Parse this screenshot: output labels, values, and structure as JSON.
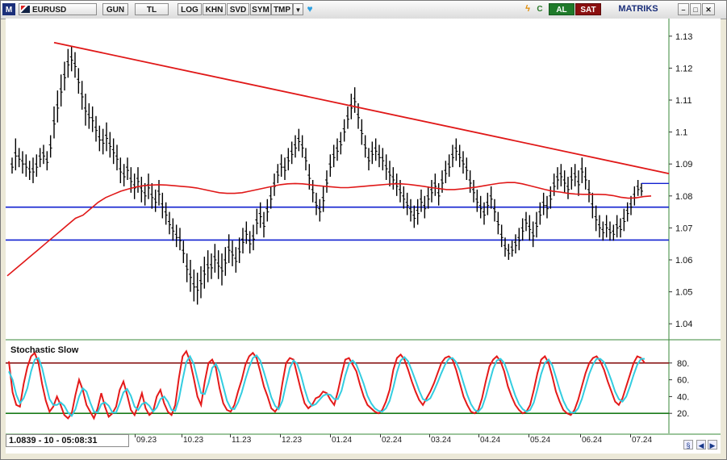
{
  "toolbar": {
    "logo": "M",
    "symbol": "EURUSD",
    "buttons": [
      "GUN",
      "TL",
      "LOG",
      "KHN",
      "SVD",
      "SYM",
      "TMP"
    ],
    "buy_label": "AL",
    "sell_label": "SAT",
    "brand": "MATRIKS",
    "colors": {
      "buy": "#1f7a2a",
      "sell": "#8b1010",
      "brand": "#1b2f7a"
    }
  },
  "status": {
    "readout": "1.0839 - 10 - 05:08:31"
  },
  "x_axis": [
    "09.23",
    "10.23",
    "11.23",
    "12.23",
    "01.24",
    "02.24",
    "03.24",
    "04.24",
    "05.24",
    "06.24",
    "07.24"
  ],
  "y_axis": [
    "1.13",
    "1.12",
    "1.11",
    "1.1",
    "1.09",
    "1.08",
    "1.07",
    "1.06",
    "1.05",
    "1.04"
  ],
  "stoch": {
    "title": "Stochastic Slow",
    "ticks": [
      "80.",
      "60.",
      "40.",
      "20."
    ],
    "upper_level": 80,
    "lower_level": 20,
    "colors": {
      "k": "#e41a1a",
      "d": "#33cde0",
      "upper": "#8b1a1a",
      "lower": "#1a7a1a"
    }
  },
  "chart_data": {
    "type": "bar",
    "ylim": [
      1.035,
      1.135
    ],
    "candles": [
      [
        1.092,
        1.087
      ],
      [
        1.098,
        1.088
      ],
      [
        1.095,
        1.089
      ],
      [
        1.094,
        1.087
      ],
      [
        1.093,
        1.086
      ],
      [
        1.091,
        1.085
      ],
      [
        1.092,
        1.084
      ],
      [
        1.093,
        1.086
      ],
      [
        1.095,
        1.089
      ],
      [
        1.096,
        1.09
      ],
      [
        1.094,
        1.088
      ],
      [
        1.099,
        1.092
      ],
      [
        1.108,
        1.098
      ],
      [
        1.113,
        1.103
      ],
      [
        1.118,
        1.108
      ],
      [
        1.122,
        1.113
      ],
      [
        1.126,
        1.117
      ],
      [
        1.127,
        1.119
      ],
      [
        1.125,
        1.117
      ],
      [
        1.12,
        1.112
      ],
      [
        1.116,
        1.107
      ],
      [
        1.112,
        1.102
      ],
      [
        1.109,
        1.101
      ],
      [
        1.108,
        1.1
      ],
      [
        1.105,
        1.097
      ],
      [
        1.102,
        1.094
      ],
      [
        1.101,
        1.093
      ],
      [
        1.103,
        1.094
      ],
      [
        1.1,
        1.092
      ],
      [
        1.098,
        1.09
      ],
      [
        1.096,
        1.088
      ],
      [
        1.092,
        1.084
      ],
      [
        1.09,
        1.083
      ],
      [
        1.092,
        1.085
      ],
      [
        1.089,
        1.081
      ],
      [
        1.087,
        1.079
      ],
      [
        1.089,
        1.081
      ],
      [
        1.086,
        1.078
      ],
      [
        1.084,
        1.077
      ],
      [
        1.087,
        1.079
      ],
      [
        1.084,
        1.076
      ],
      [
        1.082,
        1.075
      ],
      [
        1.085,
        1.077
      ],
      [
        1.081,
        1.073
      ],
      [
        1.078,
        1.071
      ],
      [
        1.075,
        1.068
      ],
      [
        1.073,
        1.066
      ],
      [
        1.071,
        1.064
      ],
      [
        1.07,
        1.063
      ],
      [
        1.066,
        1.059
      ],
      [
        1.062,
        1.053
      ],
      [
        1.06,
        1.05
      ],
      [
        1.057,
        1.047
      ],
      [
        1.056,
        1.046
      ],
      [
        1.058,
        1.048
      ],
      [
        1.061,
        1.051
      ],
      [
        1.063,
        1.053
      ],
      [
        1.062,
        1.054
      ],
      [
        1.065,
        1.056
      ],
      [
        1.063,
        1.054
      ],
      [
        1.062,
        1.052
      ],
      [
        1.064,
        1.055
      ],
      [
        1.068,
        1.059
      ],
      [
        1.066,
        1.058
      ],
      [
        1.064,
        1.056
      ],
      [
        1.067,
        1.059
      ],
      [
        1.07,
        1.062
      ],
      [
        1.072,
        1.065
      ],
      [
        1.069,
        1.062
      ],
      [
        1.071,
        1.063
      ],
      [
        1.076,
        1.068
      ],
      [
        1.078,
        1.07
      ],
      [
        1.075,
        1.067
      ],
      [
        1.079,
        1.072
      ],
      [
        1.083,
        1.076
      ],
      [
        1.087,
        1.08
      ],
      [
        1.09,
        1.084
      ],
      [
        1.093,
        1.086
      ],
      [
        1.092,
        1.085
      ],
      [
        1.095,
        1.088
      ],
      [
        1.097,
        1.09
      ],
      [
        1.099,
        1.092
      ],
      [
        1.101,
        1.094
      ],
      [
        1.099,
        1.092
      ],
      [
        1.095,
        1.088
      ],
      [
        1.09,
        1.082
      ],
      [
        1.085,
        1.078
      ],
      [
        1.081,
        1.074
      ],
      [
        1.079,
        1.072
      ],
      [
        1.083,
        1.075
      ],
      [
        1.088,
        1.081
      ],
      [
        1.093,
        1.086
      ],
      [
        1.096,
        1.089
      ],
      [
        1.098,
        1.091
      ],
      [
        1.1,
        1.093
      ],
      [
        1.104,
        1.097
      ],
      [
        1.108,
        1.101
      ],
      [
        1.112,
        1.104
      ],
      [
        1.114,
        1.106
      ],
      [
        1.109,
        1.101
      ],
      [
        1.104,
        1.096
      ],
      [
        1.099,
        1.092
      ],
      [
        1.095,
        1.088
      ],
      [
        1.097,
        1.09
      ],
      [
        1.098,
        1.091
      ],
      [
        1.096,
        1.089
      ],
      [
        1.095,
        1.088
      ],
      [
        1.093,
        1.085
      ],
      [
        1.091,
        1.083
      ],
      [
        1.089,
        1.082
      ],
      [
        1.087,
        1.08
      ],
      [
        1.085,
        1.078
      ],
      [
        1.083,
        1.076
      ],
      [
        1.081,
        1.074
      ],
      [
        1.079,
        1.072
      ],
      [
        1.077,
        1.07
      ],
      [
        1.079,
        1.071
      ],
      [
        1.082,
        1.075
      ],
      [
        1.08,
        1.073
      ],
      [
        1.083,
        1.076
      ],
      [
        1.085,
        1.078
      ],
      [
        1.087,
        1.08
      ],
      [
        1.084,
        1.077
      ],
      [
        1.088,
        1.081
      ],
      [
        1.091,
        1.084
      ],
      [
        1.093,
        1.086
      ],
      [
        1.096,
        1.089
      ],
      [
        1.098,
        1.091
      ],
      [
        1.096,
        1.089
      ],
      [
        1.094,
        1.087
      ],
      [
        1.092,
        1.085
      ],
      [
        1.088,
        1.081
      ],
      [
        1.085,
        1.078
      ],
      [
        1.082,
        1.075
      ],
      [
        1.08,
        1.073
      ],
      [
        1.078,
        1.071
      ],
      [
        1.081,
        1.074
      ],
      [
        1.083,
        1.076
      ],
      [
        1.079,
        1.072
      ],
      [
        1.075,
        1.068
      ],
      [
        1.071,
        1.064
      ],
      [
        1.067,
        1.061
      ],
      [
        1.065,
        1.06
      ],
      [
        1.066,
        1.061
      ],
      [
        1.068,
        1.062
      ],
      [
        1.07,
        1.063
      ],
      [
        1.073,
        1.066
      ],
      [
        1.075,
        1.069
      ],
      [
        1.074,
        1.066
      ],
      [
        1.072,
        1.064
      ],
      [
        1.075,
        1.067
      ],
      [
        1.078,
        1.071
      ],
      [
        1.081,
        1.074
      ],
      [
        1.08,
        1.073
      ],
      [
        1.083,
        1.076
      ],
      [
        1.087,
        1.08
      ],
      [
        1.089,
        1.082
      ],
      [
        1.09,
        1.083
      ],
      [
        1.088,
        1.081
      ],
      [
        1.086,
        1.079
      ],
      [
        1.089,
        1.082
      ],
      [
        1.09,
        1.083
      ],
      [
        1.088,
        1.08
      ],
      [
        1.092,
        1.084
      ],
      [
        1.089,
        1.082
      ],
      [
        1.085,
        1.078
      ],
      [
        1.081,
        1.073
      ],
      [
        1.077,
        1.069
      ],
      [
        1.074,
        1.067
      ],
      [
        1.072,
        1.066
      ],
      [
        1.074,
        1.067
      ],
      [
        1.072,
        1.066
      ],
      [
        1.071,
        1.066
      ],
      [
        1.074,
        1.067
      ],
      [
        1.073,
        1.067
      ],
      [
        1.076,
        1.069
      ],
      [
        1.078,
        1.072
      ],
      [
        1.08,
        1.074
      ],
      [
        1.083,
        1.077
      ],
      [
        1.085,
        1.08
      ],
      [
        1.084,
        1.08
      ]
    ],
    "ma": [
      1.055,
      1.057,
      1.059,
      1.061,
      1.063,
      1.065,
      1.067,
      1.069,
      1.071,
      1.073,
      1.074,
      1.076,
      1.078,
      1.0795,
      1.0805,
      1.0815,
      1.0822,
      1.0828,
      1.0832,
      1.0834,
      1.0835,
      1.0834,
      1.0832,
      1.083,
      1.0828,
      1.0825,
      1.082,
      1.0815,
      1.081,
      1.0808,
      1.0808,
      1.081,
      1.0815,
      1.082,
      1.0825,
      1.083,
      1.0835,
      1.0838,
      1.0839,
      1.0838,
      1.0835,
      1.0832,
      1.083,
      1.0828,
      1.0826,
      1.0826,
      1.0828,
      1.083,
      1.0832,
      1.0834,
      1.0836,
      1.0838,
      1.0838,
      1.0836,
      1.0833,
      1.083,
      1.0826,
      1.0823,
      1.082,
      1.082,
      1.0822,
      1.0825,
      1.0828,
      1.0832,
      1.0836,
      1.084,
      1.0842,
      1.0842,
      1.0838,
      1.0832,
      1.0826,
      1.082,
      1.0815,
      1.0812,
      1.0808,
      1.0806,
      1.0805,
      1.0805,
      1.0805,
      1.0804,
      1.0801,
      1.0796,
      1.0793,
      1.0794,
      1.0798,
      1.08
    ],
    "trendline": [
      [
        1.128
      ],
      [
        1.087
      ]
    ],
    "support_lines": [
      1.0765,
      1.0662
    ],
    "last_price": 1.0839,
    "stoch_k": [
      82,
      45,
      30,
      28,
      55,
      75,
      88,
      92,
      80,
      55,
      35,
      22,
      28,
      40,
      30,
      18,
      14,
      20,
      42,
      60,
      48,
      30,
      22,
      14,
      26,
      44,
      28,
      16,
      20,
      28,
      48,
      58,
      42,
      24,
      18,
      30,
      44,
      26,
      18,
      22,
      40,
      48,
      32,
      22,
      18,
      30,
      62,
      88,
      94,
      82,
      62,
      40,
      30,
      58,
      80,
      84,
      74,
      50,
      32,
      24,
      22,
      30,
      46,
      60,
      78,
      88,
      92,
      86,
      70,
      52,
      40,
      26,
      22,
      28,
      56,
      80,
      86,
      84,
      66,
      48,
      32,
      26,
      30,
      38,
      40,
      46,
      44,
      36,
      30,
      46,
      66,
      84,
      86,
      78,
      70,
      54,
      40,
      30,
      26,
      22,
      20,
      24,
      34,
      48,
      72,
      86,
      90,
      84,
      72,
      58,
      46,
      36,
      30,
      38,
      46,
      56,
      68,
      80,
      86,
      88,
      84,
      72,
      56,
      40,
      30,
      22,
      20,
      24,
      38,
      58,
      76,
      84,
      88,
      82,
      70,
      52,
      40,
      30,
      24,
      20,
      22,
      30,
      48,
      68,
      84,
      88,
      80,
      64,
      46,
      34,
      24,
      20,
      18,
      24,
      36,
      52,
      68,
      80,
      86,
      88,
      82,
      72,
      58,
      46,
      34,
      30,
      38,
      52,
      66,
      80,
      88,
      86,
      80
    ],
    "stoch_d": [
      70,
      60,
      42,
      32,
      38,
      50,
      70,
      84,
      86,
      74,
      55,
      37,
      30,
      30,
      33,
      29,
      21,
      17,
      25,
      40,
      50,
      46,
      33,
      22,
      21,
      31,
      33,
      29,
      21,
      21,
      32,
      45,
      49,
      41,
      28,
      24,
      31,
      33,
      29,
      22,
      27,
      37,
      40,
      34,
      24,
      23,
      37,
      60,
      81,
      88,
      79,
      61,
      44,
      43,
      56,
      74,
      79,
      69,
      52,
      35,
      26,
      25,
      33,
      45,
      61,
      75,
      86,
      89,
      83,
      69,
      54,
      39,
      29,
      25,
      35,
      55,
      74,
      83,
      79,
      66,
      49,
      35,
      29,
      31,
      36,
      41,
      43,
      42,
      37,
      37,
      47,
      65,
      79,
      83,
      78,
      67,
      55,
      41,
      32,
      26,
      23,
      22,
      26,
      35,
      51,
      69,
      83,
      87,
      82,
      71,
      59,
      47,
      37,
      35,
      38,
      47,
      57,
      68,
      78,
      85,
      86,
      81,
      71,
      56,
      42,
      31,
      24,
      22,
      27,
      40,
      57,
      73,
      83,
      85,
      80,
      68,
      54,
      41,
      31,
      25,
      22,
      24,
      33,
      49,
      67,
      80,
      84,
      77,
      63,
      48,
      35,
      26,
      21,
      21,
      26,
      37,
      52,
      67,
      78,
      85,
      85,
      81,
      71,
      59,
      46,
      37,
      34,
      40,
      52,
      66,
      78,
      85,
      85
    ]
  }
}
